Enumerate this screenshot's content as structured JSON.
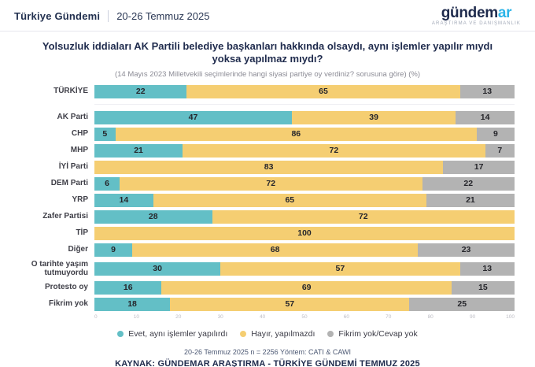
{
  "header": {
    "brand": "Türkiye Gündemi",
    "date_range": "20-26 Temmuz 2025",
    "logo": {
      "part1": "gündem",
      "part2": "ar",
      "tagline": "ARAŞTIRMA VE DANIŞMANLIK"
    }
  },
  "title": "Yolsuzluk iddiaları AK Partili belediye başkanları hakkında olsaydı, aynı işlemler yapılır mıydı yoksa yapılmaz mıydı?",
  "subtitle": "(14 Mayıs 2023 Milletvekili seçimlerinde hangi siyasi partiye oy verdiniz? sorusuna göre) (%)",
  "chart_data": {
    "type": "bar",
    "orientation": "horizontal",
    "stacked": true,
    "title": "Yolsuzluk iddiaları AK Partili belediye başkanları hakkında olsaydı, aynı işlemler yapılır mıydı yoksa yapılmaz mıydı?",
    "subtitle": "(14 Mayıs 2023 Milletvekili seçimlerinde hangi siyasi partiye oy verdiniz? sorusuna göre) (%)",
    "categories": [
      "TÜRKİYE",
      "AK Parti",
      "CHP",
      "MHP",
      "İYİ Parti",
      "DEM Parti",
      "YRP",
      "Zafer Partisi",
      "TİP",
      "Diğer",
      "O tarihte yaşım tutmuyordu",
      "Protesto oy",
      "Fikrim yok"
    ],
    "series": [
      {
        "name": "Evet, aynı işlemler yapılırdı",
        "color": "#63BFC6",
        "values": [
          22,
          47,
          5,
          21,
          0,
          6,
          14,
          28,
          0,
          9,
          30,
          16,
          18
        ]
      },
      {
        "name": "Hayır, yapılmazdı",
        "color": "#F5CE72",
        "values": [
          65,
          39,
          86,
          72,
          83,
          72,
          65,
          72,
          100,
          68,
          57,
          69,
          57
        ]
      },
      {
        "name": "Fikrim yok/Cevap yok",
        "color": "#B3B3B3",
        "values": [
          13,
          14,
          9,
          7,
          17,
          22,
          21,
          0,
          0,
          23,
          13,
          15,
          25
        ]
      }
    ],
    "x_ticks": [
      0,
      10,
      20,
      30,
      40,
      50,
      60,
      70,
      80,
      90,
      100
    ],
    "xlim": [
      0,
      100
    ],
    "grid": false,
    "legend_position": "bottom",
    "separator_after_first_row": true
  },
  "footer": {
    "methodology": "20-26 Temmuz 2025 n = 2256 Yöntem: CATI & CAWI",
    "source": "KAYNAK: GÜNDEMAR ARAŞTIRMA - TÜRKİYE GÜNDEMİ TEMMUZ 2025"
  }
}
